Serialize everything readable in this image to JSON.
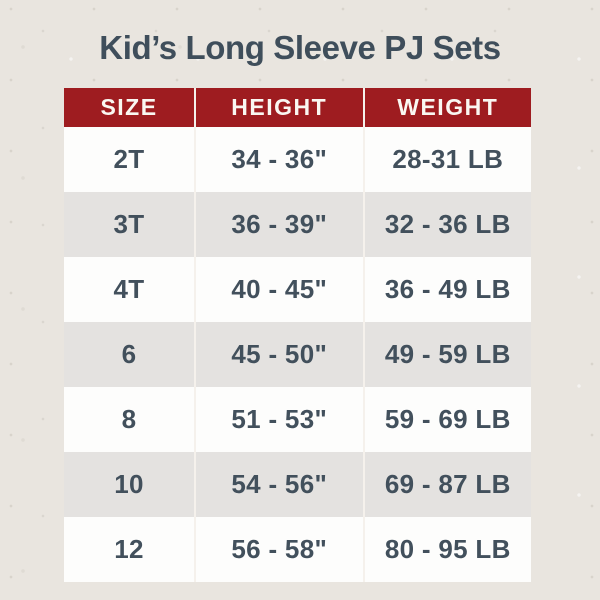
{
  "title": "Kid’s Long Sleeve PJ Sets",
  "colors": {
    "background": "#e9e5df",
    "header_bg": "#9e1c20",
    "header_text": "#faf7f2",
    "row_white": "#fdfdfc",
    "row_gray": "#e4e2e0",
    "body_text": "#42505c",
    "title_text": "#3f4e5b",
    "divider": "#f5f1ec"
  },
  "chart_data": {
    "type": "table",
    "title": "Kid’s Long Sleeve PJ Sets",
    "columns": [
      "SIZE",
      "HEIGHT",
      "WEIGHT"
    ],
    "rows": [
      [
        "2T",
        "34 - 36\"",
        "28-31 LB"
      ],
      [
        "3T",
        "36 - 39\"",
        "32 - 36 LB"
      ],
      [
        "4T",
        "40 - 45\"",
        "36 - 49 LB"
      ],
      [
        "6",
        "45 - 50\"",
        "49 - 59 LB"
      ],
      [
        "8",
        "51 - 53\"",
        "59 - 69 LB"
      ],
      [
        "10",
        "54 - 56\"",
        "69 - 87 LB"
      ],
      [
        "12",
        "56 - 58\"",
        "80 - 95 LB"
      ]
    ],
    "layout": {
      "header_style": "solid red band, white uppercase labels",
      "alternating_rows": true,
      "column_dividers": "thin white vertical lines",
      "legend": "none",
      "grid": "off"
    }
  }
}
